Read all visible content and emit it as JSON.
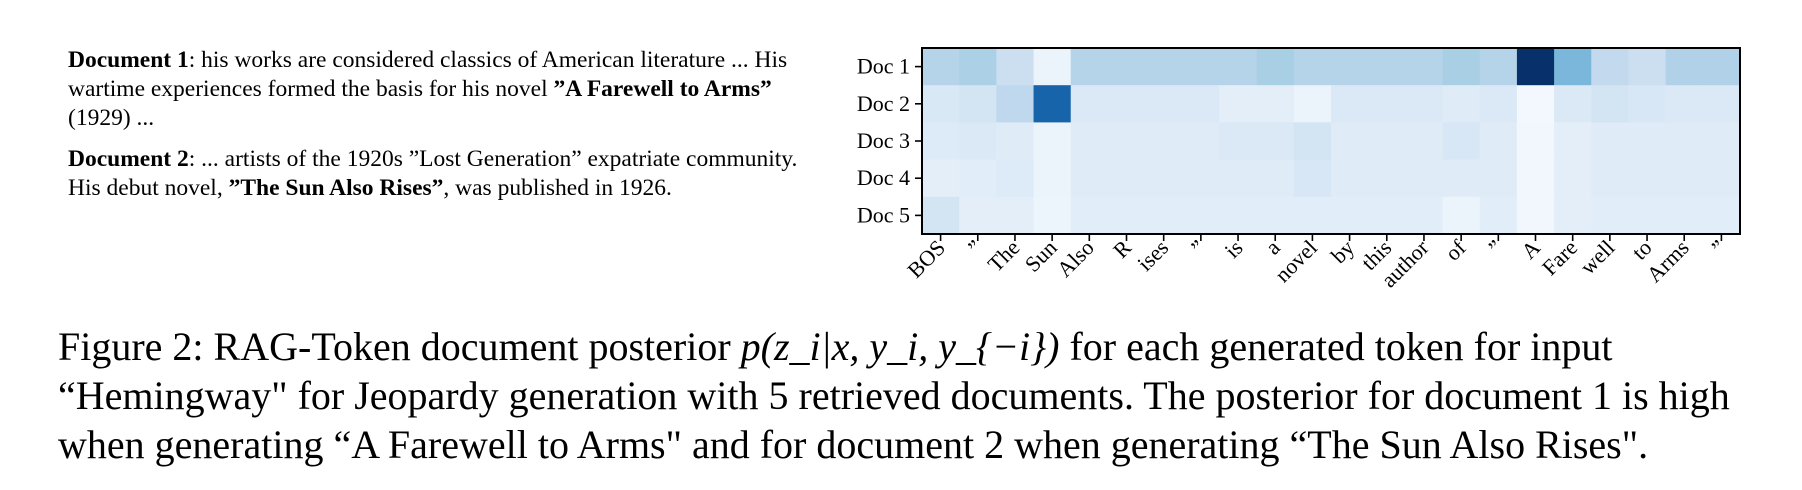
{
  "documents": [
    {
      "label": "Document 1",
      "text_1": ": his works are considered classics of American literature ... His wartime experiences formed the basis for his novel ",
      "bold": "”A Farewell to Arms”",
      "text_2": " (1929) ..."
    },
    {
      "label": "Document 2",
      "text_1": ": ... artists of the 1920s ”Lost Generation” expatriate community. His debut novel, ",
      "bold": "”The Sun Also Rises”",
      "text_2": ", was published in 1926."
    }
  ],
  "chart_data": {
    "type": "heatmap",
    "rows": [
      "Doc 1",
      "Doc 2",
      "Doc 3",
      "Doc 4",
      "Doc 5"
    ],
    "columns": [
      "BOS",
      "”",
      "The",
      "Sun",
      "Also",
      "R",
      "ises",
      "”",
      "is",
      "a",
      "novel",
      "by",
      "this",
      "author",
      "of",
      "”",
      "A",
      "Fare",
      "well",
      "to",
      "Arms",
      "”"
    ],
    "values": [
      [
        0.3,
        0.33,
        0.22,
        0.06,
        0.3,
        0.3,
        0.3,
        0.3,
        0.3,
        0.34,
        0.3,
        0.3,
        0.3,
        0.3,
        0.34,
        0.3,
        1.0,
        0.46,
        0.26,
        0.22,
        0.32,
        0.32
      ],
      [
        0.15,
        0.18,
        0.27,
        0.8,
        0.14,
        0.14,
        0.14,
        0.14,
        0.1,
        0.1,
        0.06,
        0.14,
        0.14,
        0.14,
        0.12,
        0.14,
        0.02,
        0.14,
        0.18,
        0.16,
        0.14,
        0.14
      ],
      [
        0.13,
        0.14,
        0.12,
        0.06,
        0.12,
        0.12,
        0.12,
        0.12,
        0.14,
        0.14,
        0.18,
        0.12,
        0.12,
        0.12,
        0.16,
        0.12,
        0.03,
        0.1,
        0.12,
        0.12,
        0.12,
        0.12
      ],
      [
        0.1,
        0.11,
        0.13,
        0.06,
        0.12,
        0.12,
        0.12,
        0.12,
        0.12,
        0.12,
        0.16,
        0.12,
        0.12,
        0.12,
        0.12,
        0.12,
        0.03,
        0.1,
        0.12,
        0.12,
        0.12,
        0.12
      ],
      [
        0.18,
        0.1,
        0.1,
        0.05,
        0.11,
        0.11,
        0.11,
        0.11,
        0.11,
        0.11,
        0.11,
        0.11,
        0.11,
        0.11,
        0.06,
        0.11,
        0.03,
        0.1,
        0.11,
        0.11,
        0.11,
        0.11
      ]
    ],
    "colormap": "Blues",
    "value_range": [
      0,
      1
    ],
    "colorbar": false
  },
  "caption": {
    "prefix": "Figure 2: RAG-Token document posterior ",
    "math": "p(z_i|x, y_i, y_{−i})",
    "suffix": " for each generated token for input “Hemingway\" for Jeopardy generation with 5 retrieved documents. The posterior for document 1 is high when generating “A Farewell to Arms\" and for document 2 when generating “The Sun Also Rises\"."
  }
}
